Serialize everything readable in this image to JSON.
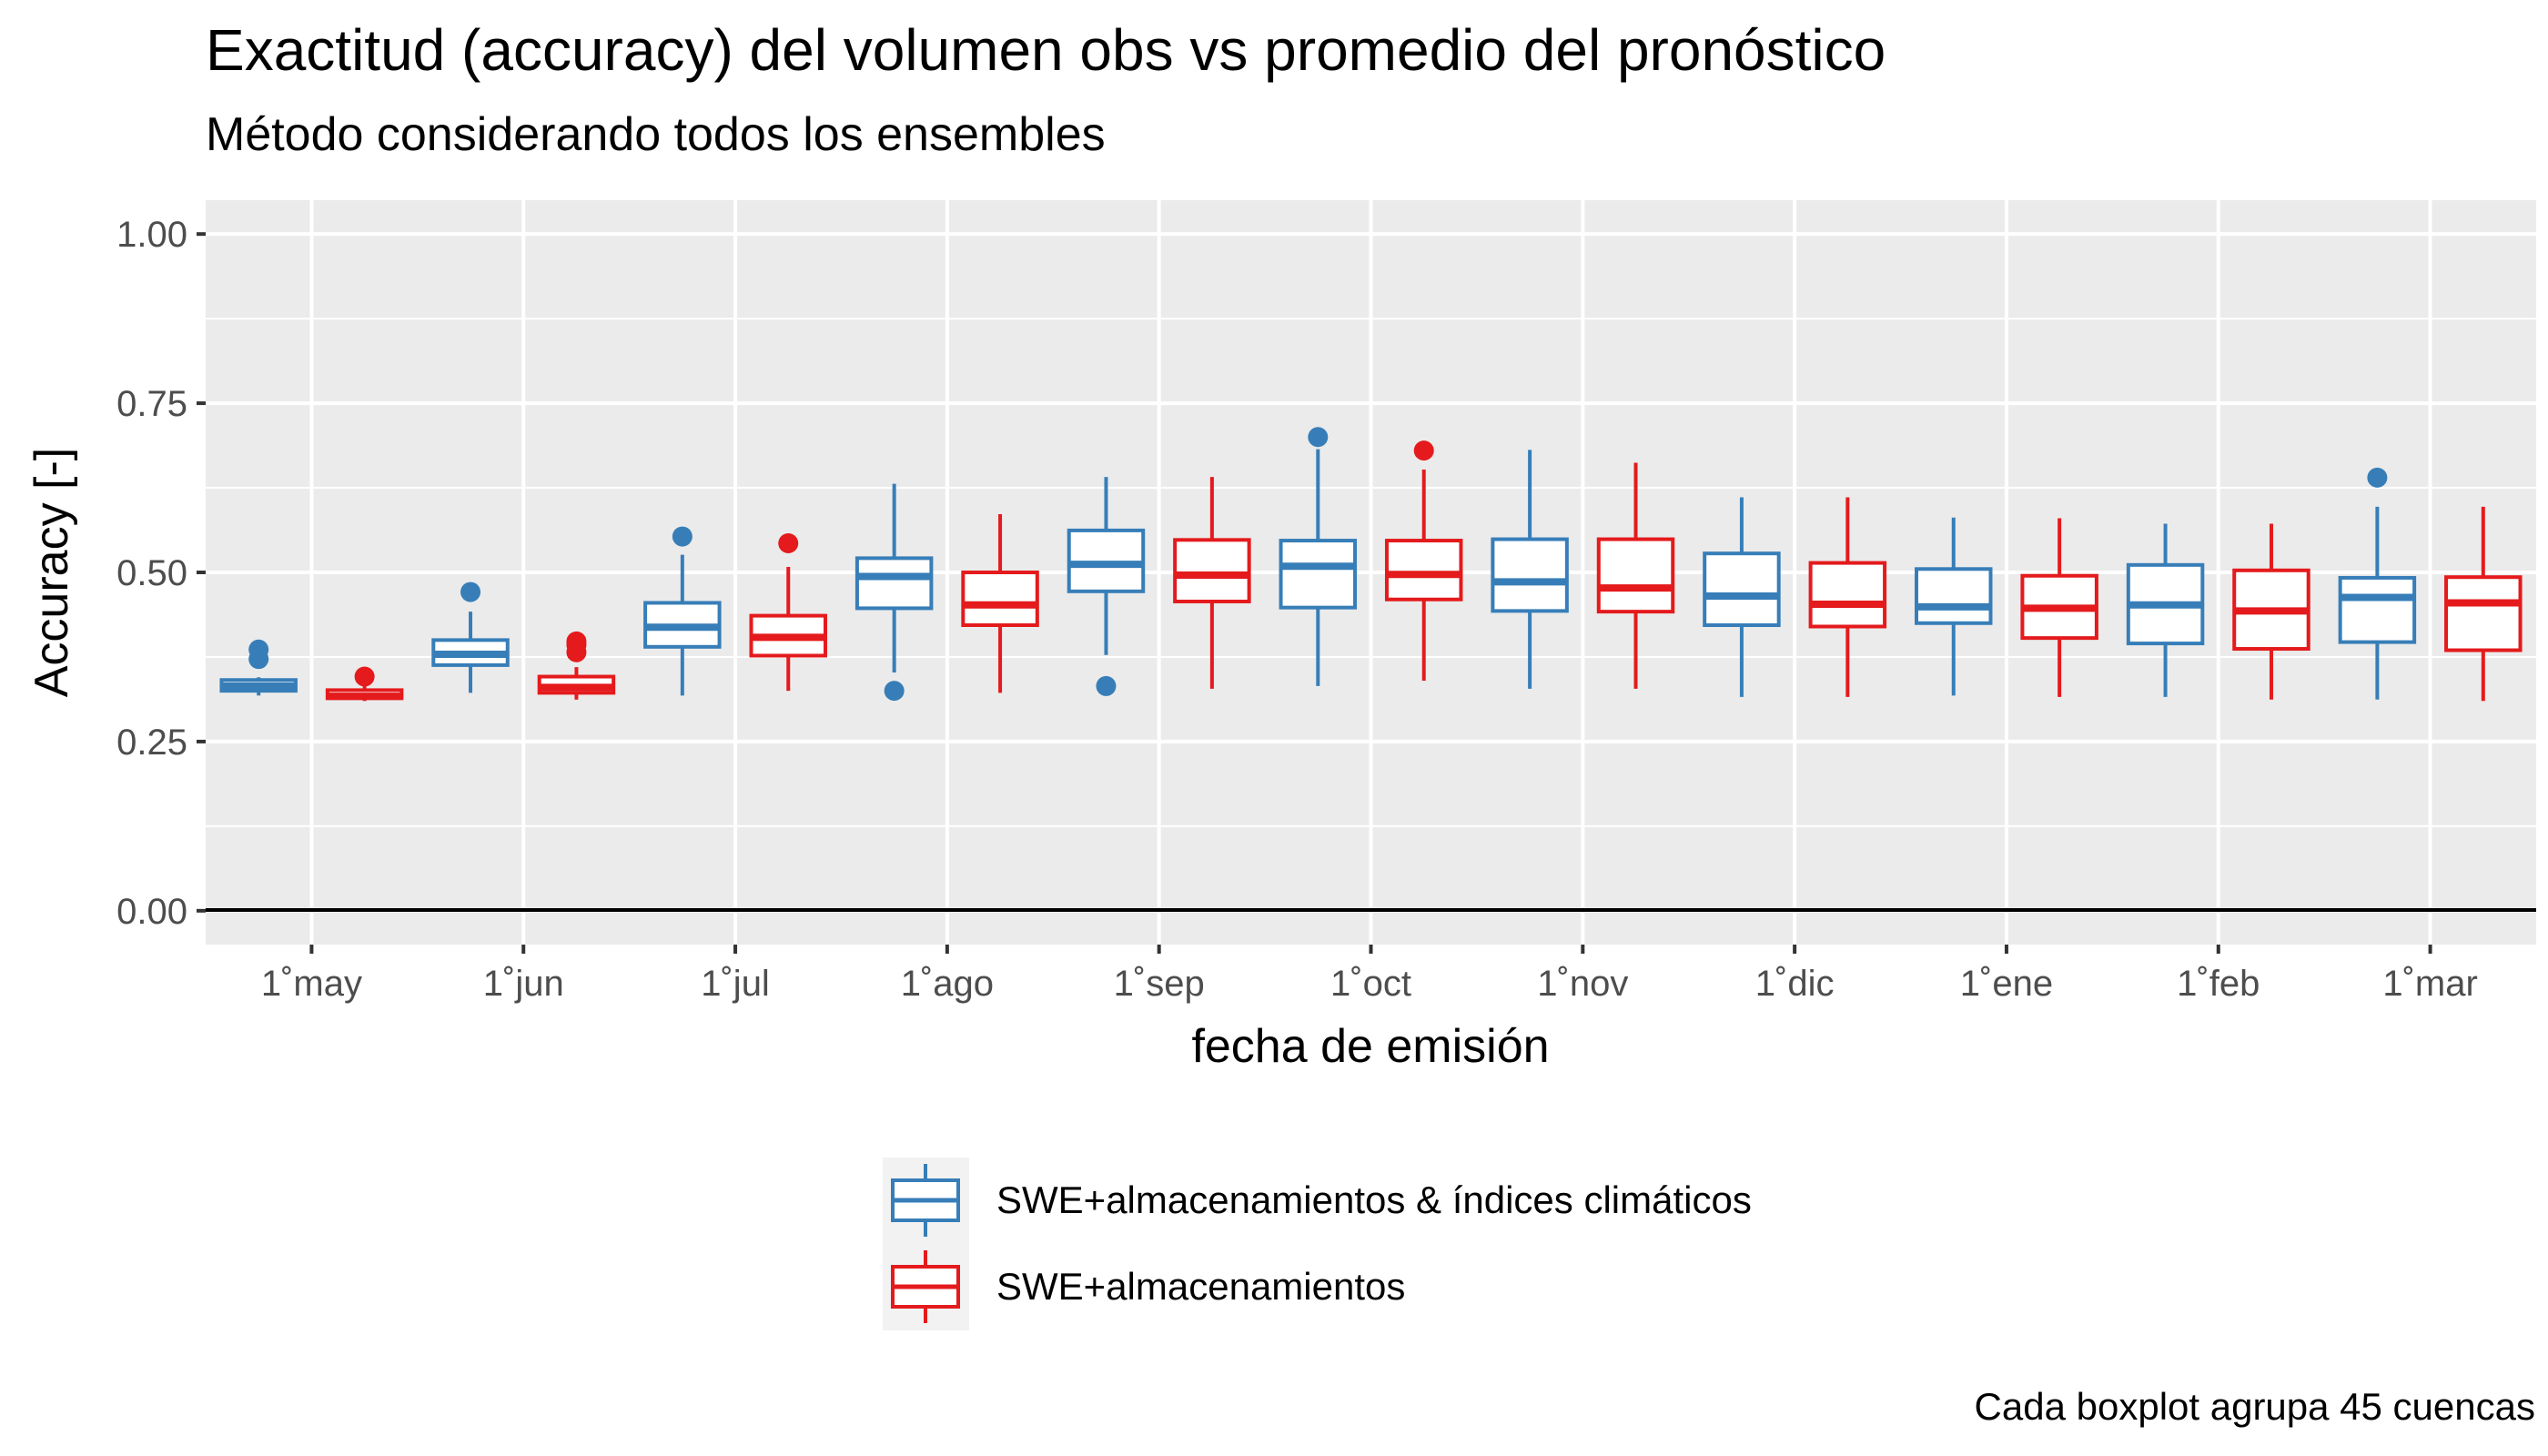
{
  "chart_data": {
    "type": "boxplot",
    "title": "Exactitud (accuracy) del volumen obs vs promedio del pronóstico",
    "subtitle": "Método considerando todos los ensembles",
    "caption": "Cada boxplot agrupa 45 cuencas",
    "xlabel": "fecha de emisión",
    "ylabel": "Accuracy [-]",
    "ylim": [
      -0.05,
      1.05
    ],
    "yticks": [
      "0.00",
      "0.25",
      "0.50",
      "0.75",
      "1.00"
    ],
    "yticks_values": [
      0,
      0.25,
      0.5,
      0.75,
      1.0
    ],
    "grid": true,
    "legend_position": "bottom",
    "categories": [
      "1˚may",
      "1˚jun",
      "1˚jul",
      "1˚ago",
      "1˚sep",
      "1˚oct",
      "1˚nov",
      "1˚dic",
      "1˚ene",
      "1˚feb",
      "1˚mar"
    ],
    "series": [
      {
        "name": "SWE+almacenamientos & índices climáticos",
        "color": "#377eb8",
        "boxes": [
          {
            "min": 0.318,
            "q1": 0.325,
            "median": 0.332,
            "q3": 0.341,
            "max": 0.345,
            "outliers": [
              0.372,
              0.386
            ]
          },
          {
            "min": 0.322,
            "q1": 0.363,
            "median": 0.379,
            "q3": 0.4,
            "max": 0.442,
            "outliers": [
              0.471
            ]
          },
          {
            "min": 0.318,
            "q1": 0.39,
            "median": 0.419,
            "q3": 0.455,
            "max": 0.526,
            "outliers": [
              0.553
            ]
          },
          {
            "min": 0.352,
            "q1": 0.447,
            "median": 0.494,
            "q3": 0.521,
            "max": 0.631,
            "outliers": [
              0.325
            ]
          },
          {
            "min": 0.378,
            "q1": 0.472,
            "median": 0.512,
            "q3": 0.562,
            "max": 0.641,
            "outliers": [
              0.332
            ]
          },
          {
            "min": 0.332,
            "q1": 0.448,
            "median": 0.509,
            "q3": 0.547,
            "max": 0.682,
            "outliers": [
              0.7
            ]
          },
          {
            "min": 0.328,
            "q1": 0.443,
            "median": 0.486,
            "q3": 0.549,
            "max": 0.681,
            "outliers": []
          },
          {
            "min": 0.316,
            "q1": 0.422,
            "median": 0.465,
            "q3": 0.528,
            "max": 0.611,
            "outliers": []
          },
          {
            "min": 0.318,
            "q1": 0.425,
            "median": 0.449,
            "q3": 0.505,
            "max": 0.581,
            "outliers": []
          },
          {
            "min": 0.316,
            "q1": 0.395,
            "median": 0.452,
            "q3": 0.511,
            "max": 0.572,
            "outliers": []
          },
          {
            "min": 0.312,
            "q1": 0.397,
            "median": 0.463,
            "q3": 0.492,
            "max": 0.597,
            "outliers": [
              0.64
            ]
          }
        ]
      },
      {
        "name": "SWE+almacenamientos",
        "color": "#e41a1c",
        "boxes": [
          {
            "min": 0.31,
            "q1": 0.314,
            "median": 0.317,
            "q3": 0.326,
            "max": 0.332,
            "outliers": [
              0.346
            ]
          },
          {
            "min": 0.312,
            "q1": 0.322,
            "median": 0.33,
            "q3": 0.346,
            "max": 0.36,
            "outliers": [
              0.382,
              0.393,
              0.398
            ]
          },
          {
            "min": 0.325,
            "q1": 0.377,
            "median": 0.404,
            "q3": 0.436,
            "max": 0.508,
            "outliers": [
              0.543
            ]
          },
          {
            "min": 0.322,
            "q1": 0.422,
            "median": 0.452,
            "q3": 0.5,
            "max": 0.586,
            "outliers": []
          },
          {
            "min": 0.328,
            "q1": 0.457,
            "median": 0.496,
            "q3": 0.548,
            "max": 0.641,
            "outliers": []
          },
          {
            "min": 0.34,
            "q1": 0.46,
            "median": 0.497,
            "q3": 0.547,
            "max": 0.652,
            "outliers": [
              0.68
            ]
          },
          {
            "min": 0.328,
            "q1": 0.442,
            "median": 0.477,
            "q3": 0.549,
            "max": 0.662,
            "outliers": []
          },
          {
            "min": 0.316,
            "q1": 0.42,
            "median": 0.453,
            "q3": 0.514,
            "max": 0.611,
            "outliers": []
          },
          {
            "min": 0.316,
            "q1": 0.403,
            "median": 0.447,
            "q3": 0.495,
            "max": 0.58,
            "outliers": []
          },
          {
            "min": 0.312,
            "q1": 0.387,
            "median": 0.443,
            "q3": 0.503,
            "max": 0.572,
            "outliers": []
          },
          {
            "min": 0.31,
            "q1": 0.385,
            "median": 0.455,
            "q3": 0.493,
            "max": 0.597,
            "outliers": []
          }
        ]
      }
    ]
  }
}
